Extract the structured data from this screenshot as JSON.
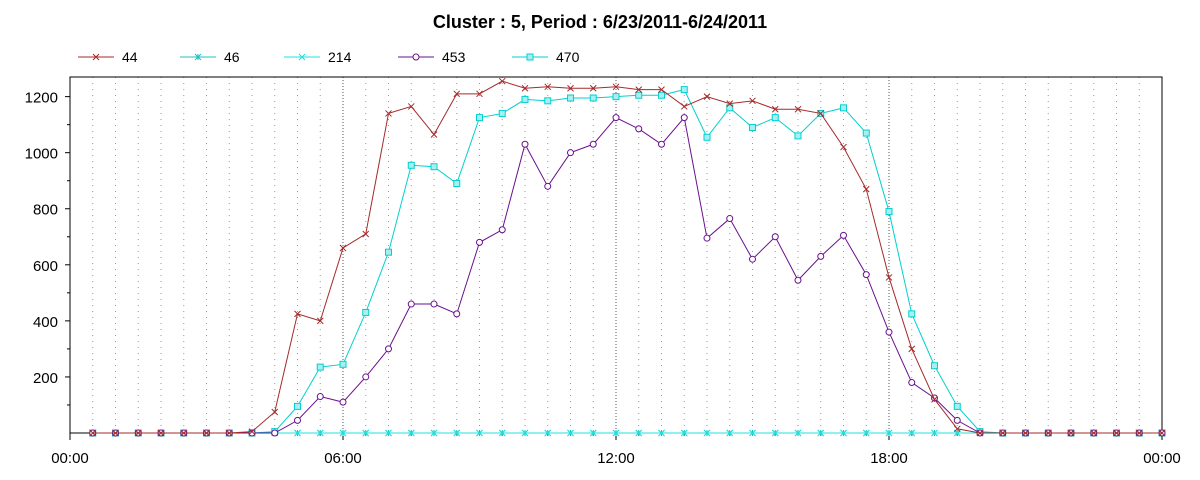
{
  "chart_data": {
    "type": "line",
    "title": "Cluster : 5, Period : 6/23/2011-6/24/2011",
    "xlabel": "",
    "ylabel": "",
    "x_range_hours": [
      0,
      24
    ],
    "ylim": [
      0,
      1270
    ],
    "yticks": [
      200,
      400,
      600,
      800,
      1000,
      1200
    ],
    "xtick_labels": [
      "00:00",
      "06:00",
      "12:00",
      "18:00",
      "00:00"
    ],
    "grid": "vertical dotted",
    "legend_position": "top-left",
    "x": [
      0.5,
      1,
      1.5,
      2,
      2.5,
      3,
      3.5,
      4,
      4.5,
      5,
      5.5,
      6,
      6.5,
      7,
      7.5,
      8,
      8.5,
      9,
      9.5,
      10,
      10.5,
      11,
      11.5,
      12,
      12.5,
      13,
      13.5,
      14,
      14.5,
      15,
      15.5,
      16,
      16.5,
      17,
      17.5,
      18,
      18.5,
      19,
      19.5,
      20,
      20.5,
      21,
      21.5,
      22,
      22.5,
      23,
      23.5,
      24
    ],
    "series": [
      {
        "name": "44",
        "color": "#a52a2a",
        "marker": "x",
        "values": [
          0,
          0,
          0,
          0,
          0,
          0,
          0,
          5,
          75,
          425,
          400,
          660,
          710,
          1140,
          1165,
          1065,
          1210,
          1210,
          1255,
          1230,
          1235,
          1230,
          1230,
          1235,
          1225,
          1225,
          1165,
          1200,
          1175,
          1185,
          1155,
          1155,
          1140,
          1020,
          870,
          555,
          300,
          120,
          15,
          0,
          0,
          0,
          0,
          0,
          0,
          0,
          0,
          0
        ]
      },
      {
        "name": "46",
        "color": "#20c0c0",
        "marker": "star",
        "values": [
          0,
          0,
          0,
          0,
          0,
          0,
          0,
          0,
          0,
          0,
          0,
          0,
          0,
          0,
          0,
          0,
          0,
          0,
          0,
          0,
          0,
          0,
          0,
          0,
          0,
          0,
          0,
          0,
          0,
          0,
          0,
          0,
          0,
          0,
          0,
          0,
          0,
          0,
          0,
          0,
          0,
          0,
          0,
          0,
          0,
          0,
          0,
          0
        ]
      },
      {
        "name": "214",
        "color": "#20e0e0",
        "marker": "x",
        "values": [
          0,
          0,
          0,
          0,
          0,
          0,
          0,
          0,
          0,
          0,
          0,
          0,
          0,
          0,
          0,
          0,
          0,
          0,
          0,
          0,
          0,
          0,
          0,
          0,
          0,
          0,
          0,
          0,
          0,
          0,
          0,
          0,
          0,
          0,
          0,
          0,
          0,
          0,
          0,
          0,
          0,
          0,
          0,
          0,
          0,
          0,
          0,
          0
        ]
      },
      {
        "name": "453",
        "color": "#6a0f8e",
        "marker": "circle",
        "values": [
          0,
          0,
          0,
          0,
          0,
          0,
          0,
          0,
          0,
          45,
          130,
          110,
          200,
          300,
          460,
          460,
          425,
          680,
          725,
          1030,
          880,
          1000,
          1030,
          1125,
          1085,
          1030,
          1125,
          695,
          765,
          620,
          700,
          545,
          630,
          705,
          565,
          360,
          180,
          125,
          45,
          0,
          0,
          0,
          0,
          0,
          0,
          0,
          0,
          0
        ]
      },
      {
        "name": "470",
        "color": "#00d0d0",
        "marker": "square",
        "values": [
          0,
          0,
          0,
          0,
          0,
          0,
          0,
          0,
          5,
          95,
          235,
          245,
          430,
          645,
          955,
          950,
          890,
          1125,
          1140,
          1190,
          1185,
          1195,
          1195,
          1200,
          1205,
          1205,
          1225,
          1055,
          1160,
          1090,
          1125,
          1060,
          1140,
          1160,
          1070,
          790,
          425,
          240,
          95,
          5,
          0,
          0,
          0,
          0,
          0,
          0,
          0,
          0
        ]
      }
    ]
  }
}
